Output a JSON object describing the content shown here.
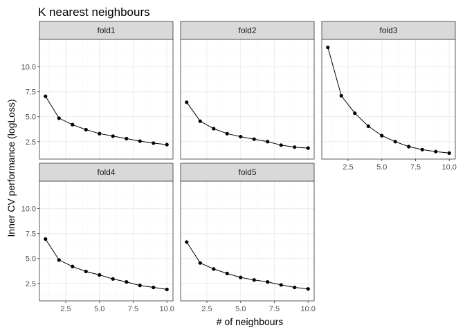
{
  "chart_data": {
    "type": "line",
    "title": "K nearest neighbours",
    "xlabel": "# of neighbours",
    "ylabel": "Inner CV performance (logLoss)",
    "xlim": [
      0.55,
      10.45
    ],
    "ylim": [
      0.75,
      12.75
    ],
    "x_ticks": [
      2.5,
      5.0,
      7.5,
      10.0
    ],
    "x_tick_labels": [
      "2.5",
      "5.0",
      "7.5",
      "10.0"
    ],
    "y_ticks": [
      2.5,
      5.0,
      7.5,
      10.0
    ],
    "y_tick_labels": [
      "2.5",
      "5.0",
      "7.5",
      "10.0"
    ],
    "grid": true,
    "x": [
      1,
      2,
      3,
      4,
      5,
      6,
      7,
      8,
      9,
      10
    ],
    "panels": [
      {
        "name": "fold1",
        "values": [
          7.05,
          4.85,
          4.2,
          3.7,
          3.3,
          3.05,
          2.8,
          2.55,
          2.35,
          2.2
        ]
      },
      {
        "name": "fold2",
        "values": [
          6.45,
          4.55,
          3.8,
          3.3,
          3.0,
          2.75,
          2.5,
          2.15,
          1.95,
          1.85
        ]
      },
      {
        "name": "fold3",
        "values": [
          11.95,
          7.1,
          5.35,
          4.05,
          3.1,
          2.5,
          2.0,
          1.7,
          1.5,
          1.35
        ]
      },
      {
        "name": "fold4",
        "values": [
          6.95,
          4.85,
          4.2,
          3.7,
          3.35,
          2.95,
          2.65,
          2.3,
          2.1,
          1.9
        ]
      },
      {
        "name": "fold5",
        "values": [
          6.65,
          4.55,
          3.95,
          3.5,
          3.1,
          2.85,
          2.65,
          2.35,
          2.1,
          1.95
        ]
      }
    ],
    "colors": {
      "line": "#000000",
      "point": "#000000",
      "panel_border": "#333333",
      "strip_fill": "#d9d9d9",
      "grid_major": "#ebebeb",
      "grid_minor": "#f5f5f5"
    }
  }
}
